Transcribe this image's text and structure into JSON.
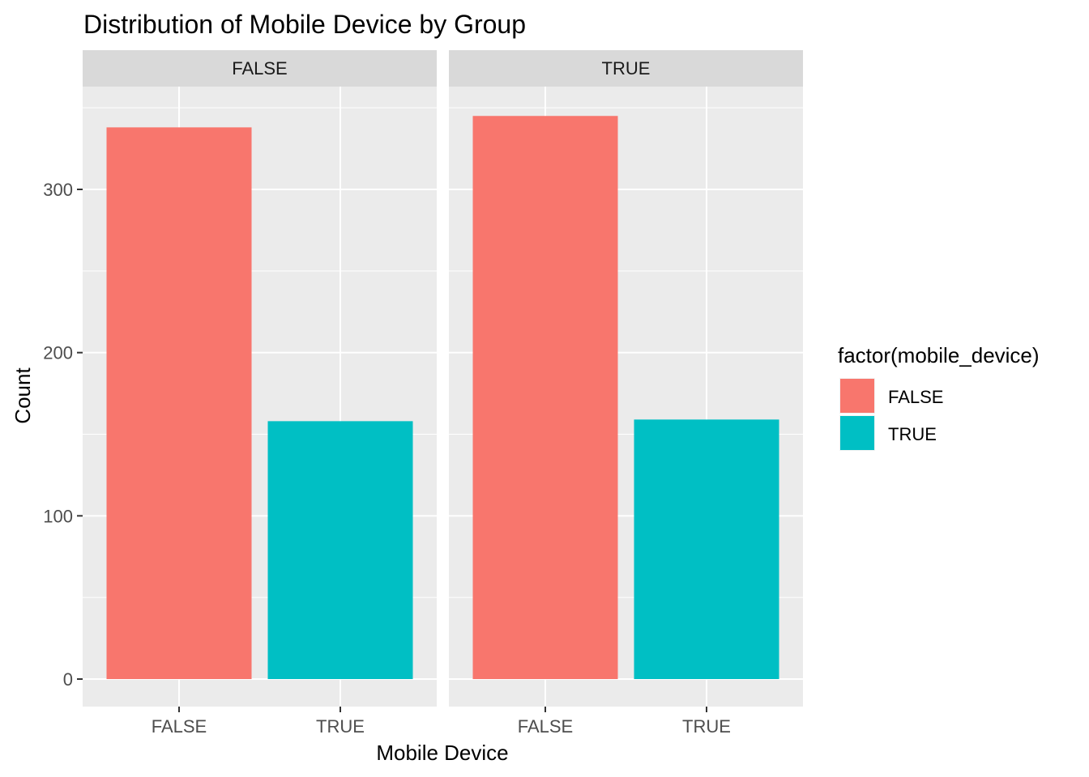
{
  "chart_data": {
    "type": "bar",
    "title": "Distribution of Mobile Device by Group",
    "xlabel": "Mobile Device",
    "ylabel": "Count",
    "ylim": [
      0,
      350
    ],
    "yticks": [
      0,
      100,
      200,
      300
    ],
    "categories": [
      "FALSE",
      "TRUE"
    ],
    "facets": [
      {
        "label": "FALSE",
        "values": [
          338,
          158
        ]
      },
      {
        "label": "TRUE",
        "values": [
          345,
          159
        ]
      }
    ],
    "legend": {
      "title": "factor(mobile_device)",
      "position": "right",
      "items": [
        {
          "label": "FALSE",
          "color": "#F8766D"
        },
        {
          "label": "TRUE",
          "color": "#00BFC4"
        }
      ]
    },
    "grid": true,
    "colors": {
      "panel": "#EBEBEB",
      "strip": "#D9D9D9",
      "grid": "#FFFFFF"
    }
  }
}
